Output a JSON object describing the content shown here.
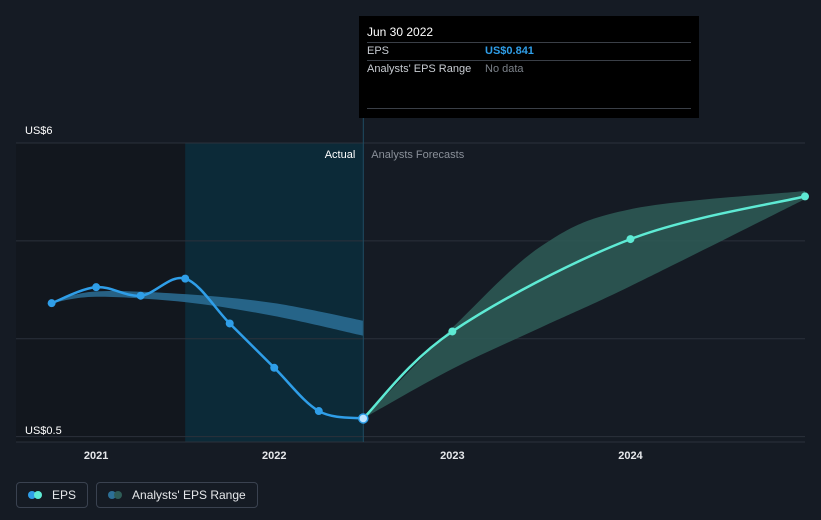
{
  "chart_data": {
    "type": "line",
    "x_domain": [
      2020.55,
      2024.98
    ],
    "ylim": [
      0.4,
      6.0
    ],
    "y_tick_labels": [
      {
        "value": 6.0,
        "label": "US$6"
      },
      {
        "value": 0.5,
        "label": "US$0.5"
      }
    ],
    "x_ticks": [
      {
        "value": 2021.0,
        "label": "2021"
      },
      {
        "value": 2022.0,
        "label": "2022"
      },
      {
        "value": 2023.0,
        "label": "2023"
      },
      {
        "value": 2024.0,
        "label": "2024"
      }
    ],
    "divider_x": 2022.5,
    "highlight_start_x": 2021.5,
    "region_labels": {
      "actual": "Actual",
      "forecast": "Analysts Forecasts"
    },
    "series": [
      {
        "name": "EPS",
        "points": [
          [
            2020.75,
            3.0
          ],
          [
            2021.0,
            3.3
          ],
          [
            2021.25,
            3.14
          ],
          [
            2021.5,
            3.46
          ],
          [
            2021.75,
            2.62
          ],
          [
            2022.0,
            1.79
          ],
          [
            2022.25,
            0.98
          ],
          [
            2022.5,
            0.841
          ]
        ]
      },
      {
        "name": "EPS Forecast",
        "points": [
          [
            2022.5,
            0.841
          ],
          [
            2023.0,
            2.47
          ],
          [
            2024.0,
            4.2
          ],
          [
            2024.98,
            5.0
          ]
        ]
      }
    ],
    "analyst_range_actual": {
      "x": [
        2020.75,
        2021.0,
        2021.5,
        2022.0,
        2022.5
      ],
      "high": [
        3.02,
        3.22,
        3.17,
        3.0,
        2.67
      ],
      "low": [
        3.0,
        3.12,
        3.02,
        2.76,
        2.39
      ]
    },
    "analyst_range_forecast": {
      "x": [
        2022.5,
        2023.0,
        2023.5,
        2024.0,
        2024.98
      ],
      "high": [
        0.841,
        2.54,
        4.07,
        4.76,
        5.1
      ],
      "low": [
        0.841,
        1.77,
        2.55,
        3.32,
        4.95
      ]
    },
    "colors": {
      "eps": "#2f9ee8",
      "forecast": "#5eead4",
      "range_actual": "#2c6f96",
      "range_forecast": "#2e5c57",
      "actual_highlight": "#0c2a38",
      "history_shade": "#12171e",
      "grid": "#2b313b",
      "divider": "#1e4d63"
    }
  },
  "tooltip": {
    "date": "Jun 30 2022",
    "rows": [
      {
        "label": "EPS",
        "value": "US$0.841"
      },
      {
        "label": "Analysts' EPS Range",
        "value": "No data"
      }
    ]
  },
  "legend": [
    {
      "label": "EPS",
      "colors": [
        "#5eead4",
        "#2f9ee8"
      ]
    },
    {
      "label": "Analysts' EPS Range",
      "colors": [
        "#2e5c57",
        "#2c6f96"
      ]
    }
  ]
}
